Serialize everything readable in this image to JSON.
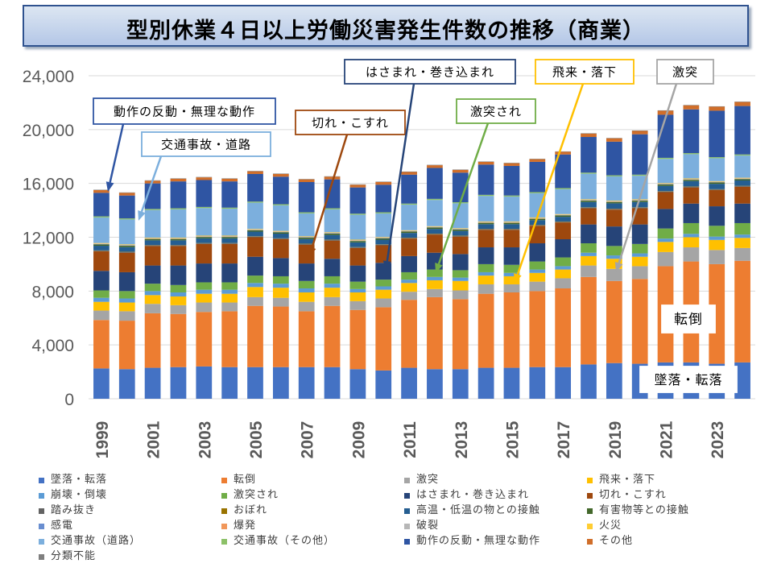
{
  "title": "型別休業４日以上労働災害発生件数の推移（商業）",
  "colors": {
    "grid": "#d9d9d9",
    "axis_text": "#595959",
    "callout_text": "#000000"
  },
  "chart_data": {
    "type": "bar",
    "stacked": true,
    "grid": true,
    "legend_position": "bottom",
    "categories": [
      "1999",
      "2000",
      "2001",
      "2002",
      "2003",
      "2004",
      "2005",
      "2006",
      "2007",
      "2008",
      "2009",
      "2010",
      "2011",
      "2012",
      "2013",
      "2014",
      "2015",
      "2016",
      "2017",
      "2018",
      "2019",
      "2020",
      "2021",
      "2022",
      "2023",
      "2024"
    ],
    "x_tick_labels": [
      "1999",
      "2001",
      "2003",
      "2005",
      "2007",
      "2009",
      "2011",
      "2013",
      "2015",
      "2017",
      "2019",
      "2021",
      "2023"
    ],
    "ylim": [
      0,
      24000
    ],
    "y_ticks": [
      0,
      4000,
      8000,
      12000,
      16000,
      20000,
      24000
    ],
    "y_tick_labels": [
      "0",
      "4,000",
      "8,000",
      "12,000",
      "16,000",
      "20,000",
      "24,000"
    ],
    "series": [
      {
        "name": "墜落・転落",
        "color": "#4472c4",
        "values": [
          2250,
          2200,
          2300,
          2350,
          2400,
          2350,
          2350,
          2350,
          2350,
          2350,
          2200,
          2100,
          2300,
          2200,
          2200,
          2300,
          2300,
          2350,
          2350,
          2550,
          2650,
          2600,
          2700,
          2700,
          2600,
          2700
        ]
      },
      {
        "name": "転倒",
        "color": "#ed7d31",
        "values": [
          3600,
          3600,
          4050,
          3950,
          4050,
          4150,
          4550,
          4500,
          4150,
          4550,
          4400,
          4700,
          5050,
          5350,
          5200,
          5500,
          5600,
          5650,
          5850,
          6500,
          6100,
          6300,
          7150,
          7500,
          7400,
          7550
        ]
      },
      {
        "name": "激突",
        "color": "#a5a5a5",
        "values": [
          700,
          700,
          700,
          650,
          700,
          650,
          650,
          650,
          700,
          650,
          650,
          650,
          600,
          600,
          650,
          700,
          600,
          700,
          750,
          850,
          900,
          950,
          1050,
          1050,
          1050,
          950
        ]
      },
      {
        "name": "飛来・落下",
        "color": "#ffc000",
        "values": [
          650,
          650,
          650,
          650,
          650,
          650,
          750,
          750,
          700,
          700,
          650,
          650,
          650,
          650,
          700,
          650,
          600,
          650,
          650,
          700,
          750,
          700,
          750,
          750,
          750,
          750
        ]
      },
      {
        "name": "崩壊・倒壊",
        "color": "#5b9bd5",
        "values": [
          300,
          300,
          300,
          300,
          300,
          300,
          300,
          300,
          300,
          300,
          250,
          250,
          250,
          250,
          250,
          250,
          250,
          250,
          250,
          250,
          250,
          250,
          250,
          250,
          250,
          250
        ]
      },
      {
        "name": "激突され",
        "color": "#70ad47",
        "values": [
          550,
          550,
          550,
          550,
          550,
          550,
          550,
          550,
          550,
          550,
          550,
          500,
          550,
          550,
          550,
          600,
          600,
          600,
          650,
          700,
          700,
          700,
          750,
          800,
          800,
          850
        ]
      },
      {
        "name": "はさまれ・巻き込まれ",
        "color": "#264478",
        "values": [
          1450,
          1400,
          1350,
          1450,
          1400,
          1400,
          1400,
          1350,
          1300,
          1300,
          1200,
          1250,
          1200,
          1250,
          1200,
          1250,
          1300,
          1350,
          1350,
          1400,
          1450,
          1450,
          1450,
          1450,
          1450,
          1450
        ]
      },
      {
        "name": "切れ・こすれ",
        "color": "#9e480e",
        "values": [
          1450,
          1450,
          1450,
          1450,
          1450,
          1450,
          1450,
          1400,
          1400,
          1350,
          1300,
          1300,
          1300,
          1350,
          1300,
          1300,
          1300,
          1300,
          1250,
          1200,
          1250,
          1200,
          1250,
          1200,
          1200,
          1250
        ]
      },
      {
        "name": "踏み抜き",
        "color": "#636363",
        "values": [
          50,
          50,
          50,
          50,
          50,
          50,
          50,
          50,
          50,
          50,
          50,
          50,
          50,
          50,
          50,
          50,
          50,
          50,
          50,
          50,
          50,
          50,
          50,
          50,
          50,
          50
        ]
      },
      {
        "name": "おぼれ",
        "color": "#997300",
        "values": [
          20,
          20,
          20,
          20,
          20,
          20,
          20,
          20,
          20,
          20,
          20,
          20,
          20,
          20,
          20,
          20,
          20,
          20,
          20,
          20,
          20,
          20,
          20,
          20,
          20,
          20
        ]
      },
      {
        "name": "高温・低温の物との接触",
        "color": "#255e91",
        "values": [
          350,
          350,
          350,
          350,
          350,
          350,
          350,
          350,
          350,
          350,
          350,
          350,
          350,
          350,
          350,
          350,
          350,
          350,
          350,
          400,
          400,
          400,
          400,
          400,
          400,
          400
        ]
      },
      {
        "name": "有害物等との接触",
        "color": "#43682b",
        "values": [
          100,
          100,
          100,
          100,
          100,
          100,
          100,
          100,
          100,
          100,
          100,
          100,
          100,
          100,
          100,
          100,
          100,
          100,
          100,
          100,
          100,
          100,
          100,
          100,
          100,
          100
        ]
      },
      {
        "name": "感電",
        "color": "#698ed0",
        "values": [
          20,
          20,
          20,
          20,
          20,
          20,
          20,
          20,
          20,
          20,
          20,
          20,
          20,
          20,
          20,
          20,
          20,
          20,
          20,
          20,
          20,
          20,
          20,
          20,
          20,
          20
        ]
      },
      {
        "name": "爆発",
        "color": "#f1975a",
        "values": [
          20,
          20,
          20,
          20,
          20,
          20,
          20,
          20,
          20,
          20,
          20,
          20,
          20,
          20,
          20,
          20,
          20,
          20,
          20,
          20,
          20,
          20,
          20,
          20,
          20,
          20
        ]
      },
      {
        "name": "破裂",
        "color": "#b7b7b7",
        "values": [
          20,
          20,
          20,
          20,
          20,
          20,
          20,
          20,
          20,
          20,
          20,
          20,
          20,
          20,
          20,
          20,
          20,
          20,
          20,
          20,
          20,
          20,
          20,
          20,
          20,
          20
        ]
      },
      {
        "name": "火災",
        "color": "#ffcd33",
        "values": [
          40,
          40,
          40,
          40,
          40,
          40,
          40,
          40,
          40,
          40,
          40,
          40,
          40,
          40,
          40,
          40,
          40,
          40,
          40,
          40,
          40,
          40,
          40,
          40,
          40,
          40
        ]
      },
      {
        "name": "交通事故（道路）",
        "color": "#7cafdd",
        "values": [
          1900,
          1850,
          2050,
          2100,
          2050,
          2000,
          1950,
          1900,
          1700,
          1700,
          1850,
          1750,
          1900,
          1950,
          1850,
          1900,
          1850,
          1800,
          1850,
          1900,
          1800,
          1750,
          1800,
          1800,
          1700,
          1650
        ]
      },
      {
        "name": "交通事故（その他）",
        "color": "#8cc168",
        "values": [
          80,
          80,
          80,
          80,
          80,
          80,
          80,
          80,
          80,
          80,
          80,
          80,
          80,
          80,
          80,
          80,
          80,
          80,
          80,
          80,
          80,
          80,
          80,
          80,
          80,
          80
        ]
      },
      {
        "name": "動作の反動・無理な動作",
        "color": "#2f55a3",
        "values": [
          1750,
          1700,
          1900,
          2000,
          2000,
          1950,
          2050,
          2050,
          2250,
          2150,
          1950,
          2050,
          2150,
          2300,
          2200,
          2250,
          2200,
          2250,
          2500,
          2650,
          2500,
          3000,
          3200,
          3250,
          3450,
          3600
        ]
      },
      {
        "name": "その他",
        "color": "#d06e2a",
        "values": [
          200,
          200,
          200,
          200,
          200,
          200,
          200,
          200,
          200,
          200,
          200,
          200,
          200,
          200,
          200,
          200,
          200,
          200,
          200,
          250,
          250,
          250,
          300,
          300,
          300,
          300
        ]
      },
      {
        "name": "分類不能",
        "color": "#7f7f7f",
        "values": [
          30,
          30,
          30,
          30,
          30,
          30,
          30,
          30,
          30,
          30,
          30,
          30,
          30,
          30,
          30,
          30,
          30,
          30,
          30,
          30,
          30,
          30,
          30,
          30,
          30,
          30
        ]
      }
    ]
  },
  "callouts": [
    {
      "id": "dousa",
      "text": "動作の反動・無理な動作"
    },
    {
      "id": "koutsuu",
      "text": "交通事故・道路"
    },
    {
      "id": "kire",
      "text": "切れ・こすれ"
    },
    {
      "id": "hasamare",
      "text": "はさまれ・巻き込まれ"
    },
    {
      "id": "gekitotsusare",
      "text": "激突され"
    },
    {
      "id": "hirai",
      "text": "飛来・落下"
    },
    {
      "id": "gekitotsu",
      "text": "激突"
    },
    {
      "id": "tentou",
      "text": "転倒"
    },
    {
      "id": "tsuiraku",
      "text": "墜落・転落"
    }
  ]
}
